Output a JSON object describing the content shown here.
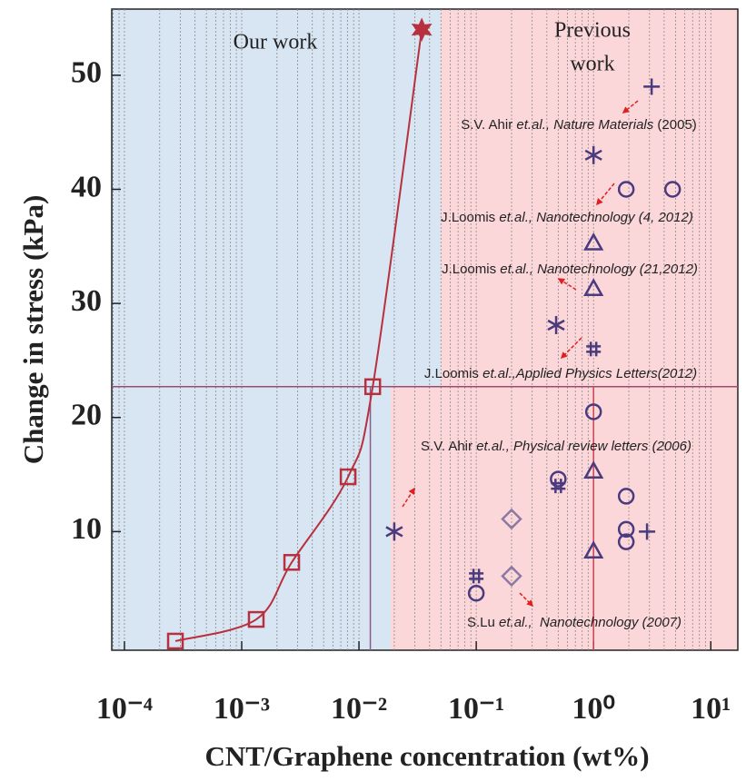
{
  "chart_data": {
    "type": "scatter",
    "x_label": "CNT/Graphene concentration (wt%)",
    "y_label": "Change in stress (kPa)",
    "xscale": "log",
    "xlim": [
      7.8e-05,
      17
    ],
    "ylim": [
      -0.4,
      55.8
    ],
    "xticks": [
      {
        "value": 0.0001,
        "label": "10⁻⁴"
      },
      {
        "value": 0.001,
        "label": "10⁻³"
      },
      {
        "value": 0.01,
        "label": "10⁻²"
      },
      {
        "value": 0.1,
        "label": "10⁻¹"
      },
      {
        "value": 1,
        "label": "10⁰"
      },
      {
        "value": 10,
        "label": "10¹"
      }
    ],
    "yticks": [
      10,
      20,
      30,
      40,
      50
    ],
    "grid": "x-minor-dotted",
    "regions": [
      {
        "label": "Our work",
        "color": "#d8e6f3"
      },
      {
        "label": [
          "Previous",
          "work"
        ],
        "color": "#fcd7da"
      }
    ],
    "region_boundary": {
      "x_upper": 0.05,
      "x_lower": 0.0187,
      "y_split": 22.7
    },
    "reference_lines": {
      "y": 22.7,
      "x": [
        0.0125,
        1
      ],
      "colors": [
        "#a04a70",
        "#8a5a8a",
        "#d04050"
      ]
    },
    "series": [
      {
        "name": "Our work",
        "color": "#b8303e",
        "line": true,
        "markers": [
          "square",
          "square",
          "square",
          "square",
          "square",
          "star"
        ],
        "x": [
          0.000272,
          0.00133,
          0.00267,
          0.00808,
          0.0131,
          0.0343
        ],
        "values": [
          0.4,
          2.3,
          7.3,
          14.8,
          22.7,
          54
        ]
      },
      {
        "name": "plus",
        "color": "#4a3a7e",
        "marker": "plus",
        "x": [
          3.13,
          2.86
        ],
        "values": [
          49,
          10
        ]
      },
      {
        "name": "circle",
        "color": "#4a3a7e",
        "marker": "circle",
        "x": [
          1.9,
          4.72,
          1,
          1.9,
          1.9,
          1.9,
          0.5,
          0.1
        ],
        "values": [
          40,
          40,
          20.5,
          13.1,
          10.2,
          9.1,
          14.6,
          4.6
        ]
      },
      {
        "name": "asterisk",
        "color": "#4a3a7e",
        "marker": "asterisk",
        "x": [
          1,
          0.48,
          0.02
        ],
        "values": [
          43,
          28.1,
          10
        ]
      },
      {
        "name": "triangle",
        "color": "#4a3a7e",
        "marker": "triangle",
        "x": [
          1,
          1,
          1,
          1
        ],
        "values": [
          35.3,
          31.3,
          15.3,
          8.3
        ]
      },
      {
        "name": "hash",
        "color": "#4a3a7e",
        "marker": "hash",
        "x": [
          1,
          0.5,
          0.1
        ],
        "values": [
          26,
          14,
          6.1
        ]
      },
      {
        "name": "diamond",
        "color": "#8a7aa2",
        "marker": "diamond",
        "x": [
          0.2,
          0.2
        ],
        "values": [
          11.1,
          6.1
        ]
      }
    ],
    "annotations": [
      [
        {
          "text": "S.V. Ahir ",
          "italic": false
        },
        {
          "text": "et.al., Nature Materials",
          "italic": true
        },
        {
          "text": " (2005)",
          "italic": false
        }
      ],
      [
        {
          "text": "J.Loomis ",
          "italic": false
        },
        {
          "text": "et.al., Nanotechnology (4, 2012)",
          "italic": true
        }
      ],
      [
        {
          "text": "J.Loomis ",
          "italic": false
        },
        {
          "text": "et.al., Nanotechnology (21,2012)",
          "italic": true
        }
      ],
      [
        {
          "text": "J.Loomis ",
          "italic": false
        },
        {
          "text": "et.al.,Applied Physics Letters(2012)",
          "italic": true
        }
      ],
      [
        {
          "text": "S.V. Ahir ",
          "italic": false
        },
        {
          "text": "et.al., Physical review letters (2006)",
          "italic": true
        }
      ],
      [
        {
          "text": "S.Lu ",
          "italic": false
        },
        {
          "text": "et.al.,  Nanotechnology (2007)",
          "italic": true
        }
      ]
    ],
    "arrow_color": "#e02020"
  }
}
